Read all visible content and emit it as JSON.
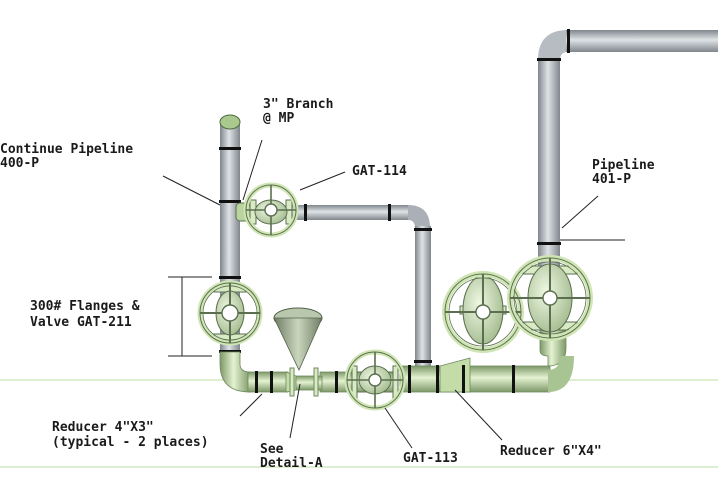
{
  "colors": {
    "pipe_gray": "#9aa0a6",
    "pipe_gray_light": "#cdd2d6",
    "pipe_dark_band": "#111111",
    "fitting_green": "#cfe5b4",
    "fitting_green_dark": "#6f8a5c",
    "ground_line": "#d4e8c2",
    "label_text": "#1a1a1a"
  },
  "labels": {
    "continue_pipeline": [
      "Continue Pipeline",
      "400-P"
    ],
    "branch": [
      "3\" Branch",
      "@ MP"
    ],
    "gat_114": [
      "GAT-114"
    ],
    "pipeline_401": [
      "Pipeline",
      "401-P"
    ],
    "flanges_valve": [
      "300# Flanges &",
      "Valve GAT-211"
    ],
    "reducer_4x3": [
      "Reducer 4\"X3\"",
      "(typical - 2 places)"
    ],
    "see_detail": [
      "See",
      "Detail-A"
    ],
    "gat_113": [
      "GAT-113"
    ],
    "reducer_6x4": [
      "Reducer 6\"X4\""
    ]
  },
  "icons": {
    "handwheel": "handwheel-icon",
    "cone": "detail-cone-icon"
  }
}
